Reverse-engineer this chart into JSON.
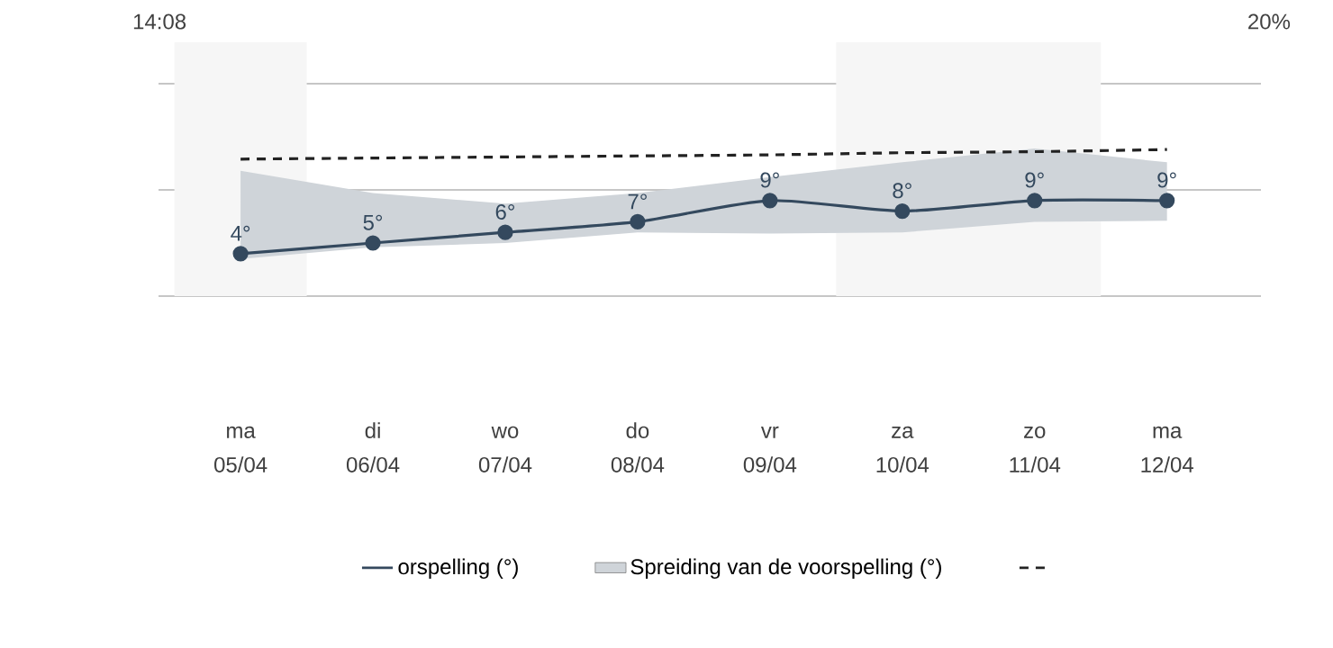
{
  "chart_data": {
    "type": "line",
    "categories": [
      "ma 05/04",
      "di 06/04",
      "wo 07/04",
      "do 08/04",
      "vr 09/04",
      "za 10/04",
      "zo 11/04",
      "ma 12/04"
    ],
    "series": [
      {
        "name": "orspelling (°)",
        "color": "#34495e",
        "values": [
          4,
          5,
          6,
          7,
          9,
          8,
          9,
          9
        ],
        "value_labels": [
          "4°",
          "5°",
          "6°",
          "7°",
          "9°",
          "8°",
          "9°",
          "9°"
        ],
        "marker": "circle"
      },
      {
        "name": "Spreiding van de voorspelling (°)",
        "color": "#cfd4d9",
        "values": [
          null,
          null,
          null,
          null,
          null,
          null,
          null,
          null
        ],
        "lower": [
          3.5,
          4.6,
          5.0,
          6.0,
          5.9,
          6.0,
          7.0,
          7.1
        ],
        "upper": [
          11.8,
          9.7,
          8.7,
          9.7,
          11.2,
          12.6,
          13.9,
          12.6
        ]
      },
      {
        "color": "#222222",
        "line_style": "dashed",
        "marker": "none",
        "values": [
          12.9,
          13.0,
          13.1,
          13.2,
          13.3,
          13.5,
          13.6,
          13.8
        ]
      }
    ],
    "legend": "bottom",
    "ylim": [
      0,
      20
    ],
    "yticks": [
      {
        "value": 0,
        "label": null
      },
      {
        "value": 10,
        "label": null
      },
      {
        "value": 20,
        "label": null
      }
    ],
    "tick_labels": "x",
    "grid": "y",
    "bands": [
      {
        "axis": "x",
        "from": "ma 05/04",
        "to": "ma 05/04",
        "color": "#f6f6f6"
      },
      {
        "axis": "x",
        "from": "za 10/04",
        "to": "zo 11/04",
        "color": "#f6f6f6"
      }
    ],
    "annotations": [
      "14:08",
      "20%"
    ]
  }
}
